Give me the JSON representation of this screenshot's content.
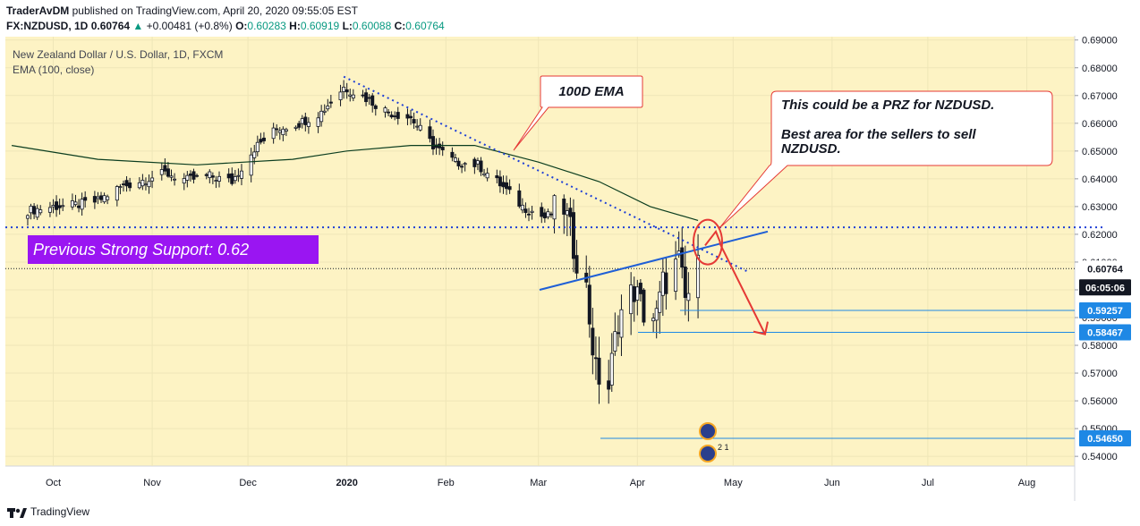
{
  "header": {
    "author": "TraderAvDM",
    "published": "published on TradingView.com, April 20, 2020 09:55:05 EST",
    "symbol": "FX:NZDUSD, 1D",
    "last": "0.60764",
    "change": "+0.00481 (+0.8%)",
    "o_label": "O:",
    "o": "0.60283",
    "h_label": "H:",
    "h": "0.60919",
    "l_label": "L:",
    "l": "0.60088",
    "c_label": "C:",
    "c": "0.60764"
  },
  "legend": {
    "title": "New Zealand Dollar / U.S. Dollar, 1D, FXCM",
    "indicator": "EMA (100, close)"
  },
  "annotations": {
    "ema_callout": "100D EMA",
    "prz_line1": "This could be a PRZ for NZDUSD.",
    "prz_line2": "Best area for the sellers to sell NZDUSD.",
    "support_label": "Previous Strong Support: 0.62",
    "event_badge": "2 1"
  },
  "price_labels": {
    "last": "0.60764",
    "countdown": "06:05:06",
    "level1": "0.59257",
    "level2": "0.58467",
    "level3": "0.54650"
  },
  "footer": {
    "brand": "TradingView"
  },
  "colors": {
    "chart_bg": "#fdf3c4",
    "candle": "#131722",
    "ema": "#0b3d1f",
    "trend_dotted": "#1e3fd6",
    "trendline": "#1f5fd6",
    "support": "#1e3fd6",
    "arrow": "#e53935",
    "support_label_bg": "#9a15f2",
    "level_line": "#1e88e5"
  },
  "chart_data": {
    "type": "candlestick",
    "title": "New Zealand Dollar / U.S. Dollar, 1D, FXCM",
    "x_ticks": [
      "Oct",
      "Nov",
      "Dec",
      "2020",
      "Feb",
      "Mar",
      "Apr",
      "May",
      "Jun",
      "Jul",
      "Aug"
    ],
    "y_ticks": [
      "0.69000",
      "0.68000",
      "0.67000",
      "0.66000",
      "0.65000",
      "0.64000",
      "0.63000",
      "0.62000",
      "0.61000",
      "0.60000",
      "0.59000",
      "0.58000",
      "0.57000",
      "0.56000",
      "0.55000",
      "0.54000"
    ],
    "ylim": [
      0.5365,
      0.6912
    ],
    "support_level": 0.6225,
    "last_price": 0.60764,
    "horizontal_levels": [
      0.59257,
      0.58467,
      0.5465
    ],
    "close_path": [
      [
        "2019-09-23",
        0.6285
      ],
      [
        "2019-10-01",
        0.63
      ],
      [
        "2019-10-08",
        0.6305
      ],
      [
        "2019-10-15",
        0.632
      ],
      [
        "2019-10-22",
        0.637
      ],
      [
        "2019-10-29",
        0.6395
      ],
      [
        "2019-11-05",
        0.642
      ],
      [
        "2019-11-12",
        0.6395
      ],
      [
        "2019-11-19",
        0.641
      ],
      [
        "2019-11-26",
        0.639
      ],
      [
        "2019-12-03",
        0.651
      ],
      [
        "2019-12-10",
        0.658
      ],
      [
        "2019-12-17",
        0.66
      ],
      [
        "2019-12-24",
        0.664
      ],
      [
        "2019-12-31",
        0.673
      ],
      [
        "2020-01-07",
        0.669
      ],
      [
        "2020-01-14",
        0.664
      ],
      [
        "2020-01-21",
        0.662
      ],
      [
        "2020-01-28",
        0.652
      ],
      [
        "2020-02-04",
        0.646
      ],
      [
        "2020-02-11",
        0.645
      ],
      [
        "2020-02-18",
        0.638
      ],
      [
        "2020-02-25",
        0.63
      ],
      [
        "2020-03-03",
        0.626
      ],
      [
        "2020-03-09",
        0.63
      ],
      [
        "2020-03-12",
        0.616
      ],
      [
        "2020-03-16",
        0.6
      ],
      [
        "2020-03-19",
        0.57
      ],
      [
        "2020-03-23",
        0.565
      ],
      [
        "2020-03-26",
        0.59
      ],
      [
        "2020-03-31",
        0.6
      ],
      [
        "2020-04-03",
        0.592
      ],
      [
        "2020-04-07",
        0.59
      ],
      [
        "2020-04-09",
        0.602
      ],
      [
        "2020-04-14",
        0.61
      ],
      [
        "2020-04-16",
        0.596
      ],
      [
        "2020-04-20",
        0.6076
      ]
    ],
    "ema_100": [
      [
        "2019-09-18",
        0.652
      ],
      [
        "2019-10-15",
        0.647
      ],
      [
        "2019-11-15",
        0.645
      ],
      [
        "2019-12-15",
        0.647
      ],
      [
        "2020-01-01",
        0.65
      ],
      [
        "2020-01-21",
        0.652
      ],
      [
        "2020-02-10",
        0.652
      ],
      [
        "2020-03-01",
        0.646
      ],
      [
        "2020-03-20",
        0.639
      ],
      [
        "2020-04-05",
        0.63
      ],
      [
        "2020-04-20",
        0.625
      ]
    ]
  }
}
